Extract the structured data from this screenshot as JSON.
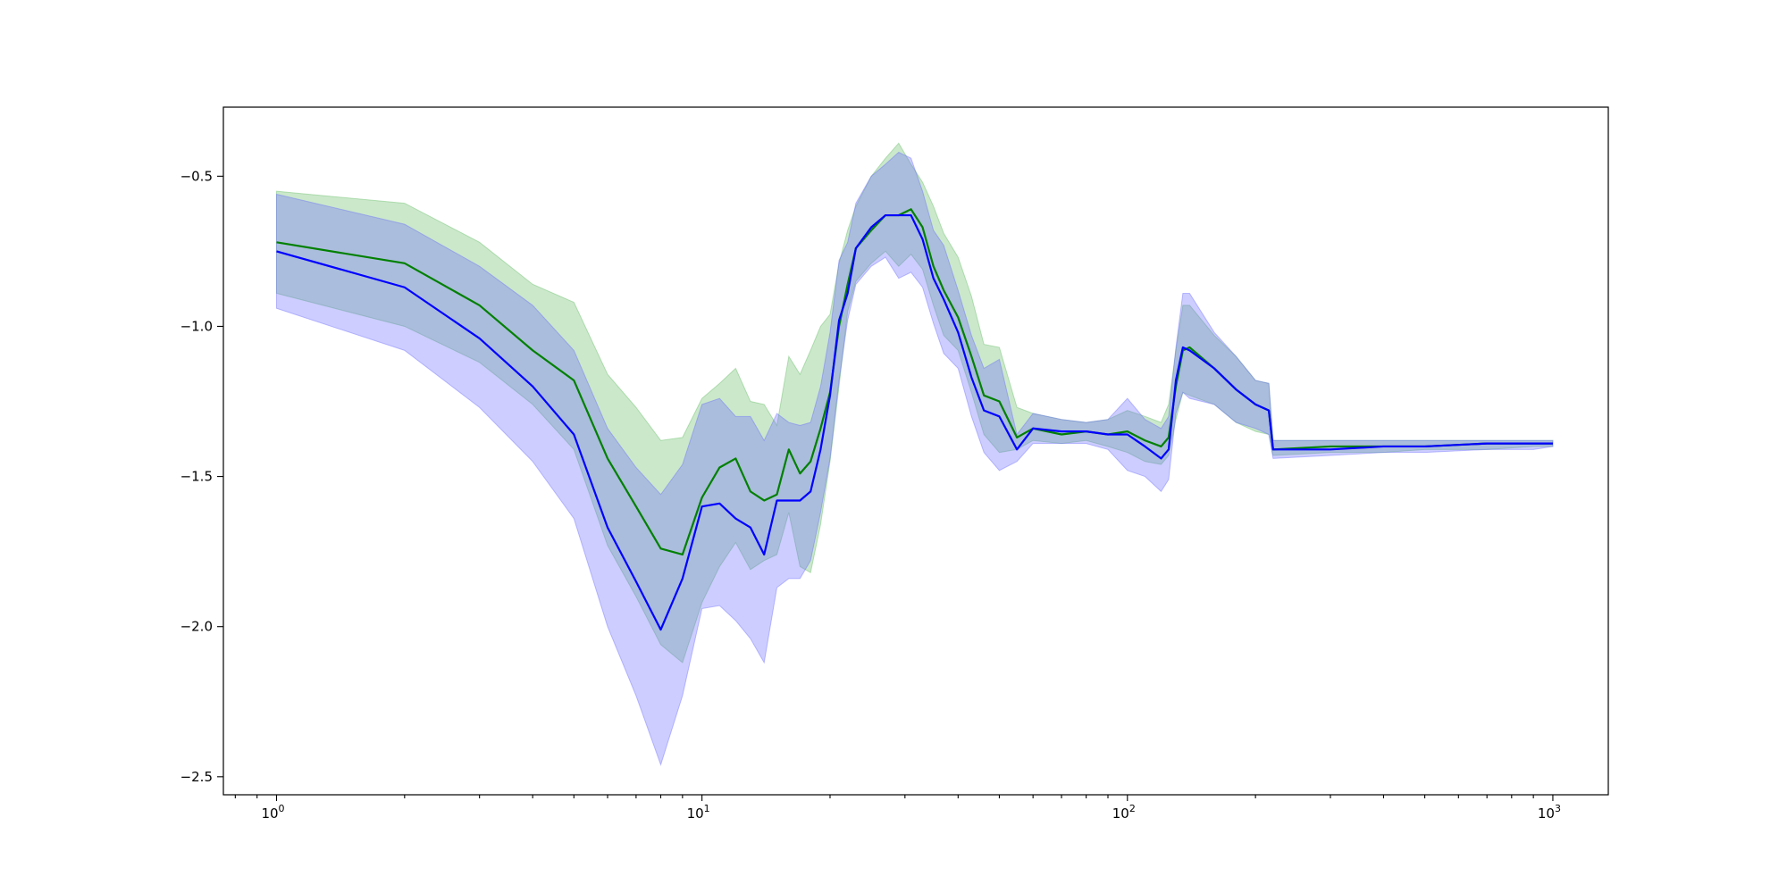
{
  "chart_data": {
    "type": "line",
    "title": "",
    "xlabel": "",
    "ylabel": "",
    "x_scale": "log",
    "xlim": [
      0.75,
      1350
    ],
    "ylim": [
      -2.56,
      -0.27
    ],
    "grid": false,
    "legend": "none",
    "x_ticks": [
      {
        "value": 1,
        "base": "10",
        "exp": "0"
      },
      {
        "value": 10,
        "base": "10",
        "exp": "1"
      },
      {
        "value": 100,
        "base": "10",
        "exp": "2"
      },
      {
        "value": 1000,
        "base": "10",
        "exp": "3"
      }
    ],
    "y_ticks": [
      {
        "value": -0.5,
        "label": "−0.5"
      },
      {
        "value": -1.0,
        "label": "−1.0"
      },
      {
        "value": -1.5,
        "label": "−1.5"
      },
      {
        "value": -2.0,
        "label": "−2.0"
      },
      {
        "value": -2.5,
        "label": "−2.5"
      }
    ],
    "series": [
      {
        "color": "#008000",
        "band_color": "#5cb85c",
        "x": [
          1,
          2,
          3,
          4,
          5,
          6,
          7,
          8,
          9,
          10,
          11,
          12,
          13,
          14,
          15,
          16,
          17,
          18,
          19,
          20,
          21,
          22,
          23,
          25,
          27,
          29,
          31,
          33,
          35,
          37,
          40,
          43,
          46,
          50,
          55,
          60,
          70,
          80,
          90,
          100,
          110,
          120,
          125,
          130,
          135,
          140,
          160,
          180,
          200,
          215,
          220,
          300,
          400,
          500,
          700,
          900,
          1000
        ],
        "y": [
          -0.72,
          -0.79,
          -0.93,
          -1.08,
          -1.18,
          -1.44,
          -1.6,
          -1.74,
          -1.76,
          -1.57,
          -1.47,
          -1.44,
          -1.55,
          -1.58,
          -1.56,
          -1.41,
          -1.49,
          -1.45,
          -1.34,
          -1.22,
          -1.0,
          -0.86,
          -0.74,
          -0.68,
          -0.63,
          -0.63,
          -0.61,
          -0.67,
          -0.8,
          -0.88,
          -0.97,
          -1.1,
          -1.23,
          -1.25,
          -1.37,
          -1.34,
          -1.36,
          -1.35,
          -1.36,
          -1.35,
          -1.38,
          -1.4,
          -1.37,
          -1.2,
          -1.08,
          -1.07,
          -1.14,
          -1.21,
          -1.26,
          -1.28,
          -1.41,
          -1.4,
          -1.4,
          -1.4,
          -1.39,
          -1.39,
          -1.39
        ],
        "lower": [
          -0.89,
          -1.0,
          -1.12,
          -1.26,
          -1.41,
          -1.73,
          -1.9,
          -2.06,
          -2.12,
          -1.92,
          -1.8,
          -1.72,
          -1.81,
          -1.78,
          -1.76,
          -1.62,
          -1.8,
          -1.82,
          -1.66,
          -1.45,
          -1.2,
          -0.95,
          -0.85,
          -0.79,
          -0.75,
          -0.8,
          -0.76,
          -0.81,
          -0.93,
          -1.03,
          -1.08,
          -1.22,
          -1.36,
          -1.42,
          -1.41,
          -1.38,
          -1.39,
          -1.38,
          -1.4,
          -1.42,
          -1.45,
          -1.46,
          -1.43,
          -1.31,
          -1.22,
          -1.23,
          -1.26,
          -1.32,
          -1.35,
          -1.36,
          -1.43,
          -1.42,
          -1.42,
          -1.41,
          -1.41,
          -1.4,
          -1.4
        ],
        "upper": [
          -0.55,
          -0.59,
          -0.72,
          -0.86,
          -0.92,
          -1.16,
          -1.27,
          -1.38,
          -1.37,
          -1.24,
          -1.19,
          -1.14,
          -1.25,
          -1.26,
          -1.33,
          -1.1,
          -1.16,
          -1.08,
          -1.0,
          -0.96,
          -0.79,
          -0.68,
          -0.6,
          -0.5,
          -0.44,
          -0.39,
          -0.46,
          -0.52,
          -0.6,
          -0.69,
          -0.77,
          -0.9,
          -1.06,
          -1.07,
          -1.27,
          -1.29,
          -1.31,
          -1.32,
          -1.31,
          -1.28,
          -1.3,
          -1.32,
          -1.26,
          -1.08,
          -0.93,
          -0.93,
          -1.03,
          -1.1,
          -1.18,
          -1.19,
          -1.38,
          -1.38,
          -1.38,
          -1.38,
          -1.38,
          -1.38,
          -1.38
        ]
      },
      {
        "color": "#0000ff",
        "band_color": "#6666ff",
        "x": [
          1,
          2,
          3,
          4,
          5,
          6,
          7,
          8,
          9,
          10,
          11,
          12,
          13,
          14,
          15,
          16,
          17,
          18,
          19,
          20,
          21,
          22,
          23,
          25,
          27,
          29,
          31,
          33,
          35,
          37,
          40,
          43,
          46,
          50,
          55,
          60,
          70,
          80,
          90,
          100,
          110,
          120,
          125,
          130,
          135,
          140,
          160,
          180,
          200,
          215,
          220,
          300,
          400,
          500,
          700,
          900,
          1000
        ],
        "y": [
          -0.75,
          -0.87,
          -1.04,
          -1.2,
          -1.36,
          -1.67,
          -1.85,
          -2.01,
          -1.84,
          -1.6,
          -1.59,
          -1.64,
          -1.67,
          -1.76,
          -1.58,
          -1.58,
          -1.58,
          -1.55,
          -1.41,
          -1.23,
          -0.98,
          -0.89,
          -0.74,
          -0.67,
          -0.63,
          -0.63,
          -0.63,
          -0.71,
          -0.84,
          -0.91,
          -1.02,
          -1.17,
          -1.28,
          -1.3,
          -1.41,
          -1.34,
          -1.35,
          -1.35,
          -1.36,
          -1.36,
          -1.4,
          -1.44,
          -1.41,
          -1.18,
          -1.07,
          -1.08,
          -1.14,
          -1.21,
          -1.26,
          -1.28,
          -1.41,
          -1.41,
          -1.4,
          -1.4,
          -1.39,
          -1.39,
          -1.39
        ],
        "lower": [
          -0.94,
          -1.08,
          -1.27,
          -1.45,
          -1.64,
          -2.0,
          -2.23,
          -2.46,
          -2.23,
          -1.94,
          -1.93,
          -1.98,
          -2.04,
          -2.12,
          -1.87,
          -1.84,
          -1.84,
          -1.78,
          -1.62,
          -1.44,
          -1.18,
          -0.98,
          -0.86,
          -0.8,
          -0.77,
          -0.84,
          -0.82,
          -0.87,
          -0.99,
          -1.09,
          -1.14,
          -1.3,
          -1.42,
          -1.48,
          -1.45,
          -1.39,
          -1.39,
          -1.39,
          -1.41,
          -1.48,
          -1.5,
          -1.55,
          -1.51,
          -1.29,
          -1.22,
          -1.24,
          -1.26,
          -1.32,
          -1.34,
          -1.36,
          -1.44,
          -1.43,
          -1.42,
          -1.42,
          -1.41,
          -1.41,
          -1.4
        ],
        "upper": [
          -0.56,
          -0.66,
          -0.8,
          -0.93,
          -1.08,
          -1.34,
          -1.47,
          -1.56,
          -1.46,
          -1.26,
          -1.24,
          -1.3,
          -1.3,
          -1.38,
          -1.29,
          -1.32,
          -1.33,
          -1.32,
          -1.2,
          -1.02,
          -0.78,
          -0.72,
          -0.59,
          -0.5,
          -0.46,
          -0.42,
          -0.44,
          -0.55,
          -0.68,
          -0.73,
          -0.88,
          -1.03,
          -1.14,
          -1.11,
          -1.36,
          -1.29,
          -1.31,
          -1.32,
          -1.31,
          -1.24,
          -1.31,
          -1.34,
          -1.3,
          -1.07,
          -0.89,
          -0.89,
          -1.02,
          -1.1,
          -1.18,
          -1.19,
          -1.38,
          -1.38,
          -1.38,
          -1.38,
          -1.38,
          -1.38,
          -1.38
        ]
      }
    ]
  }
}
